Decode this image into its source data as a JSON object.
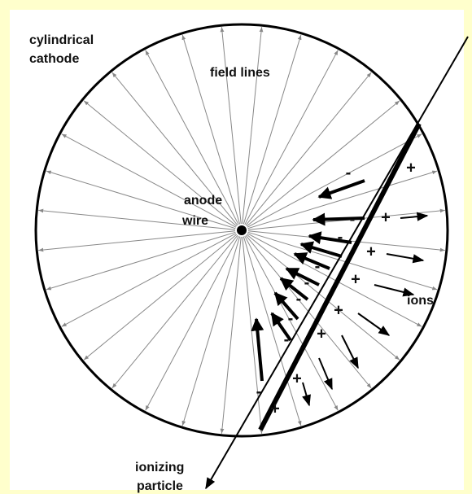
{
  "labels": {
    "cathode": [
      "cylindrical",
      "cathode"
    ],
    "field_lines": "field lines",
    "anode": [
      "anode",
      "wire"
    ],
    "ions": "ions",
    "particle": [
      "ionizing",
      "particle"
    ]
  },
  "signs": {
    "ions": [
      "+",
      "+",
      "+",
      "+",
      "+",
      "+",
      "+",
      "+"
    ],
    "electrons": [
      "-",
      "-",
      "-",
      "-",
      "-",
      "-",
      "-",
      "-",
      "-",
      "-"
    ]
  }
}
